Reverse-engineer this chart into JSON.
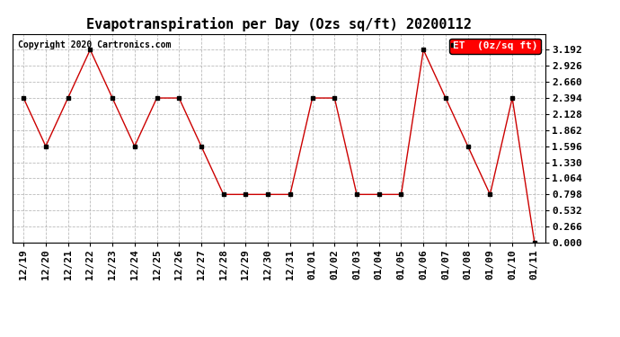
{
  "title": "Evapotranspiration per Day (Ozs sq/ft) 20200112",
  "copyright": "Copyright 2020 Cartronics.com",
  "legend_label": "ET  (0z/sq ft)",
  "dates": [
    "12/19",
    "12/20",
    "12/21",
    "12/22",
    "12/23",
    "12/24",
    "12/25",
    "12/26",
    "12/27",
    "12/28",
    "12/29",
    "12/30",
    "12/31",
    "01/01",
    "01/02",
    "01/03",
    "01/04",
    "01/05",
    "01/06",
    "01/07",
    "01/08",
    "01/09",
    "01/10",
    "01/11"
  ],
  "values": [
    2.394,
    1.596,
    2.394,
    3.192,
    2.394,
    1.596,
    2.394,
    2.394,
    1.596,
    0.798,
    0.798,
    0.798,
    0.798,
    2.394,
    2.394,
    0.798,
    0.798,
    0.798,
    3.192,
    2.394,
    1.596,
    0.798,
    2.394,
    0.0
  ],
  "line_color": "#cc0000",
  "marker_color": "#000000",
  "bg_color": "#ffffff",
  "plot_bg_color": "#ffffff",
  "grid_color": "#aaaaaa",
  "ylim": [
    0.0,
    3.458
  ],
  "yticks": [
    0.0,
    0.266,
    0.532,
    0.798,
    1.064,
    1.33,
    1.596,
    1.862,
    2.128,
    2.394,
    2.66,
    2.926,
    3.192
  ],
  "title_fontsize": 11,
  "copyright_fontsize": 7,
  "tick_fontsize": 8,
  "legend_fontsize": 8
}
